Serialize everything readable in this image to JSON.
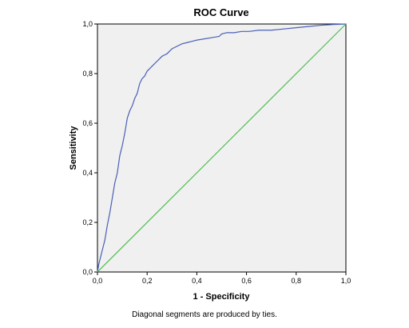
{
  "chart_data": {
    "type": "line",
    "title": "ROC Curve",
    "xlabel": "1 - Specificity",
    "ylabel": "Sensitivity",
    "xlim": [
      0,
      1
    ],
    "ylim": [
      0,
      1
    ],
    "xticks": [
      "0,0",
      "0,2",
      "0,4",
      "0,6",
      "0,8",
      "1,0"
    ],
    "yticks": [
      "0,0",
      "0,2",
      "0,4",
      "0,6",
      "0,8",
      "1,0"
    ],
    "tick_values": [
      0,
      0.2,
      0.4,
      0.6,
      0.8,
      1.0
    ],
    "grid": false,
    "plot_background": "#f0f0f0",
    "series": [
      {
        "color": "#4a5fb8",
        "x": [
          0.0,
          0.005,
          0.01,
          0.02,
          0.03,
          0.04,
          0.05,
          0.06,
          0.07,
          0.08,
          0.09,
          0.1,
          0.11,
          0.12,
          0.13,
          0.14,
          0.15,
          0.16,
          0.17,
          0.18,
          0.19,
          0.2,
          0.21,
          0.22,
          0.23,
          0.24,
          0.25,
          0.26,
          0.27,
          0.28,
          0.29,
          0.3,
          0.32,
          0.34,
          0.36,
          0.38,
          0.4,
          0.43,
          0.46,
          0.49,
          0.5,
          0.52,
          0.55,
          0.58,
          0.61,
          0.65,
          0.7,
          0.75,
          0.8,
          0.85,
          0.9,
          0.95,
          1.0
        ],
        "y": [
          0.0,
          0.03,
          0.05,
          0.09,
          0.13,
          0.19,
          0.24,
          0.3,
          0.36,
          0.4,
          0.47,
          0.51,
          0.56,
          0.62,
          0.65,
          0.67,
          0.7,
          0.72,
          0.76,
          0.78,
          0.79,
          0.81,
          0.82,
          0.83,
          0.84,
          0.85,
          0.86,
          0.87,
          0.875,
          0.88,
          0.89,
          0.9,
          0.91,
          0.92,
          0.925,
          0.93,
          0.935,
          0.94,
          0.945,
          0.95,
          0.96,
          0.965,
          0.965,
          0.97,
          0.97,
          0.975,
          0.975,
          0.98,
          0.985,
          0.99,
          0.995,
          0.998,
          1.0
        ]
      },
      {
        "color": "#4cbf4c",
        "x": [
          0,
          1
        ],
        "y": [
          0,
          1
        ]
      }
    ]
  },
  "footnote": "Diagonal segments are produced by ties."
}
